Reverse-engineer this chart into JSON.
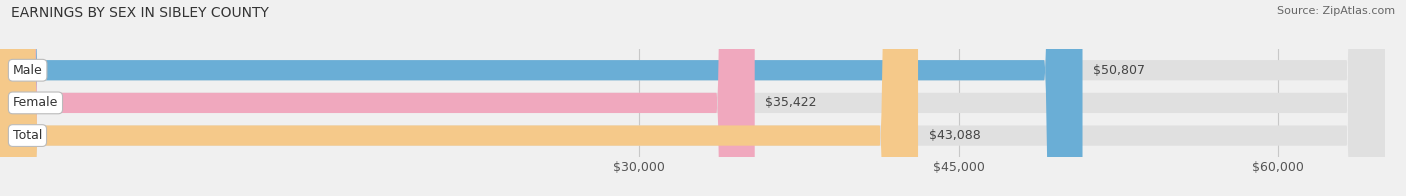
{
  "title": "EARNINGS BY SEX IN SIBLEY COUNTY",
  "source": "Source: ZipAtlas.com",
  "categories": [
    "Male",
    "Female",
    "Total"
  ],
  "values": [
    50807,
    35422,
    43088
  ],
  "bar_colors": [
    "#6aaed6",
    "#f0a8be",
    "#f5c98a"
  ],
  "bar_bg_color": "#e0e0e0",
  "x_min": 0,
  "x_max": 65000,
  "x_ticks": [
    30000,
    45000,
    60000
  ],
  "x_tick_labels": [
    "$30,000",
    "$45,000",
    "$60,000"
  ],
  "value_labels": [
    "$50,807",
    "$35,422",
    "$43,088"
  ],
  "title_fontsize": 10,
  "source_fontsize": 8,
  "tick_fontsize": 9,
  "bar_label_fontsize": 9,
  "bar_height": 0.62,
  "background_color": "#f0f0f0"
}
